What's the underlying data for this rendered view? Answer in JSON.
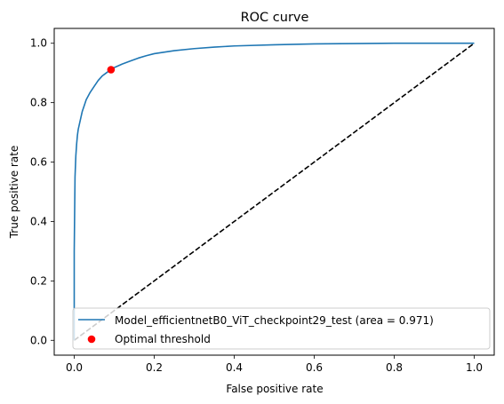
{
  "chart_data": {
    "type": "line",
    "title": "ROC curve",
    "xlabel": "False positive rate",
    "ylabel": "True positive rate",
    "xlim": [
      -0.05,
      1.05
    ],
    "ylim": [
      -0.05,
      1.05
    ],
    "xticks": [
      0.0,
      0.2,
      0.4,
      0.6,
      0.8,
      1.0
    ],
    "yticks": [
      0.0,
      0.2,
      0.4,
      0.6,
      0.8,
      1.0
    ],
    "xtick_labels": [
      "0.0",
      "0.2",
      "0.4",
      "0.6",
      "0.8",
      "1.0"
    ],
    "ytick_labels": [
      "0.0",
      "0.2",
      "0.4",
      "0.6",
      "0.8",
      "1.0"
    ],
    "grid": false,
    "legend_position": "lower-right",
    "series": [
      {
        "name": "Model_efficientnetB0_ViT_checkpoint29_test (area = 0.971)",
        "color": "#1f77b4",
        "style": "solid",
        "x": [
          0.0,
          0.0,
          0.002,
          0.004,
          0.006,
          0.008,
          0.01,
          0.015,
          0.02,
          0.025,
          0.03,
          0.04,
          0.05,
          0.06,
          0.07,
          0.08,
          0.09,
          0.1,
          0.12,
          0.14,
          0.16,
          0.18,
          0.2,
          0.25,
          0.3,
          0.35,
          0.4,
          0.5,
          0.6,
          0.7,
          0.8,
          0.9,
          1.0
        ],
        "y": [
          0.0,
          0.3,
          0.55,
          0.62,
          0.66,
          0.69,
          0.71,
          0.74,
          0.77,
          0.79,
          0.81,
          0.835,
          0.855,
          0.875,
          0.89,
          0.9,
          0.91,
          0.918,
          0.93,
          0.94,
          0.95,
          0.958,
          0.965,
          0.975,
          0.982,
          0.987,
          0.991,
          0.995,
          0.998,
          0.999,
          1.0,
          1.0,
          1.0
        ]
      },
      {
        "name": "",
        "color": "#000000",
        "style": "dashed",
        "x": [
          0.0,
          1.0
        ],
        "y": [
          0.0,
          1.0
        ]
      }
    ],
    "points": [
      {
        "name": "Optimal threshold",
        "color": "#ff0000",
        "x": [
          0.092
        ],
        "y": [
          0.911
        ]
      }
    ]
  }
}
